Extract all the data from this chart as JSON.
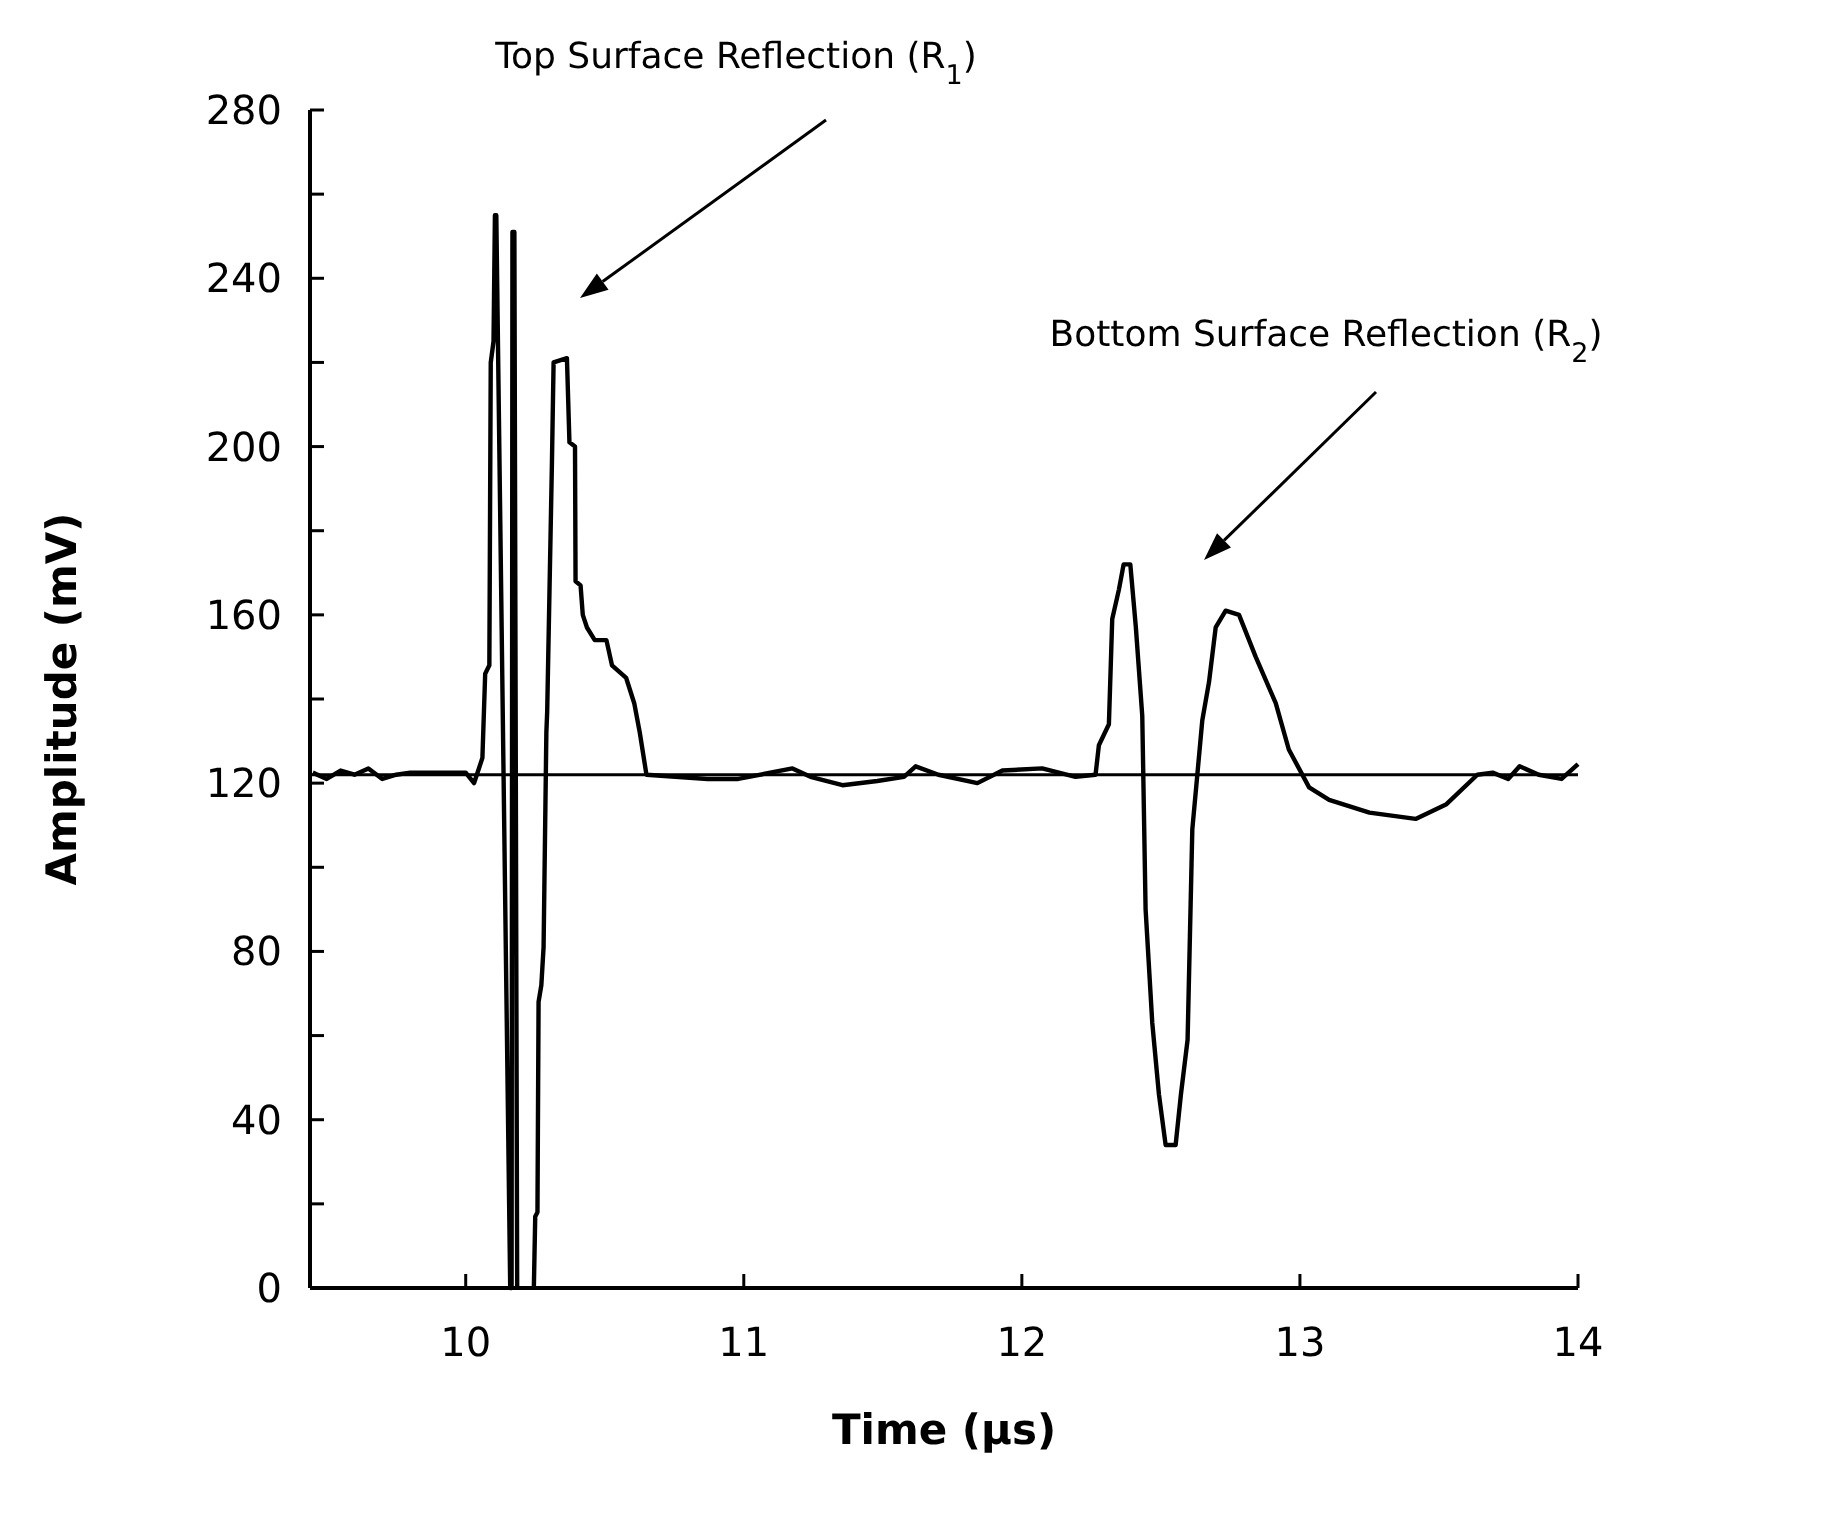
{
  "chart_data": {
    "type": "line",
    "xlabel": "Time (μs)",
    "ylabel": "Amplitude (mV)",
    "x": [
      9.45,
      9.5,
      9.55,
      9.6,
      9.65,
      9.7,
      9.75,
      9.8,
      9.9,
      10.0,
      10.03,
      10.04,
      10.06,
      10.07,
      10.085,
      10.09,
      10.1,
      10.105,
      10.11,
      10.16,
      10.165,
      10.168,
      10.175,
      10.185,
      10.2,
      10.245,
      10.25,
      10.258,
      10.262,
      10.272,
      10.28,
      10.29,
      10.293,
      10.31,
      10.316,
      10.364,
      10.373,
      10.393,
      10.395,
      10.413,
      10.421,
      10.436,
      10.464,
      10.506,
      10.526,
      10.577,
      10.606,
      10.626,
      10.65,
      10.87,
      10.98,
      11.175,
      11.24,
      11.355,
      11.48,
      11.576,
      11.618,
      11.7,
      11.84,
      11.93,
      12.073,
      12.193,
      12.265,
      12.277,
      12.313,
      12.325,
      12.349,
      12.366,
      12.39,
      12.41,
      12.433,
      12.445,
      12.469,
      12.493,
      12.517,
      12.553,
      12.572,
      12.596,
      12.613,
      12.649,
      12.673,
      12.697,
      12.733,
      12.781,
      12.841,
      12.913,
      12.96,
      13.033,
      13.105,
      13.25,
      13.416,
      13.527,
      13.638,
      13.693,
      13.749,
      13.79,
      13.859,
      13.941,
      14.0
    ],
    "values": [
      122.5,
      121,
      123,
      122,
      123.5,
      121,
      122,
      122.5,
      122.5,
      122.5,
      120,
      122,
      126,
      146,
      148,
      220,
      225,
      255,
      255,
      0,
      0,
      251,
      251,
      0,
      null,
      0,
      17,
      18,
      68,
      72,
      81,
      132,
      137,
      196,
      220,
      221,
      201,
      200,
      168,
      167,
      160,
      157,
      154,
      154,
      148,
      145,
      139,
      132,
      122,
      121,
      121,
      123.5,
      121.5,
      119.5,
      120.5,
      121.5,
      124,
      122,
      120,
      123,
      123.5,
      121.5,
      122,
      129,
      134,
      159,
      166,
      172,
      172,
      157,
      136,
      90,
      63,
      46,
      34,
      34,
      46,
      59,
      109,
      135,
      144,
      157,
      161,
      160,
      150,
      139,
      128,
      119,
      116,
      113,
      111.5,
      115,
      122,
      122.5,
      121,
      124,
      122,
      121,
      124.5
    ],
    "color": "#000000",
    "line_style": "solid",
    "marker": "none",
    "xlim": [
      9.44,
      14
    ],
    "xticks": [
      10,
      11,
      12,
      13,
      14
    ],
    "ylim": [
      0,
      280
    ],
    "yticks": [
      0,
      {
        "value": 20,
        "label": null
      },
      40,
      {
        "value": 60,
        "label": null
      },
      80,
      {
        "value": 100,
        "label": null
      },
      120,
      {
        "value": 140,
        "label": null
      },
      160,
      {
        "value": 180,
        "label": null
      },
      200,
      {
        "value": 220,
        "label": null
      },
      240,
      {
        "value": 260,
        "label": null
      },
      280
    ],
    "ref_lines": [
      {
        "axis": "y",
        "value": 122,
        "color": "#000000",
        "line_style": "solid"
      }
    ],
    "annotations": [
      "Top Surface Reflection (R$_{1}$)",
      "Bottom Surface Reflection (R$_{2}$)"
    ],
    "grid": false
  }
}
